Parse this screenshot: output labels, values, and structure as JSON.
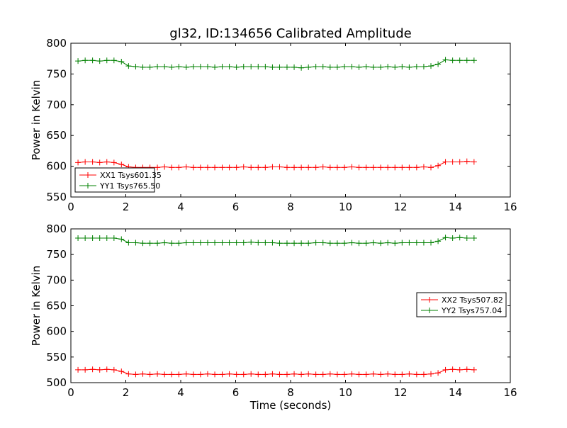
{
  "chart_data": [
    {
      "type": "line",
      "title": "gl32, ID:134656 Calibrated Amplitude",
      "xlabel": "",
      "ylabel": "Power in Kelvin",
      "xlim": [
        0,
        16
      ],
      "ylim": [
        550,
        800
      ],
      "xticks": [
        "0",
        "2",
        "4",
        "6",
        "8",
        "10",
        "12",
        "14",
        "16"
      ],
      "yticks": [
        "550",
        "600",
        "650",
        "700",
        "750",
        "800"
      ],
      "legend_position": "lower-left",
      "grid": false,
      "series": [
        {
          "name": "XX1 Tsys601.35",
          "color": "#ff0000",
          "x": [
            0.26,
            0.52,
            0.79,
            1.05,
            1.31,
            1.57,
            1.84,
            2.1,
            2.36,
            2.62,
            2.88,
            3.15,
            3.41,
            3.67,
            3.93,
            4.2,
            4.46,
            4.72,
            4.98,
            5.24,
            5.51,
            5.77,
            6.03,
            6.29,
            6.56,
            6.82,
            7.08,
            7.34,
            7.6,
            7.87,
            8.13,
            8.39,
            8.65,
            8.92,
            9.18,
            9.44,
            9.7,
            9.96,
            10.23,
            10.49,
            10.75,
            11.01,
            11.28,
            11.54,
            11.8,
            12.06,
            12.32,
            12.59,
            12.85,
            13.11,
            13.37,
            13.64,
            13.9,
            14.16,
            14.42,
            14.68
          ],
          "y": [
            606,
            607,
            607,
            606,
            607,
            606,
            603,
            599,
            598,
            598,
            598,
            598,
            599,
            598,
            598,
            599,
            598,
            598,
            598,
            598,
            598,
            598,
            598,
            599,
            598,
            598,
            598,
            599,
            599,
            598,
            598,
            598,
            598,
            598,
            599,
            598,
            598,
            598,
            599,
            598,
            598,
            598,
            598,
            598,
            598,
            598,
            598,
            598,
            599,
            598,
            601,
            607,
            607,
            607,
            608,
            607
          ]
        },
        {
          "name": "YY1 Tsys765.50",
          "color": "#008000",
          "x": [
            0.26,
            0.52,
            0.79,
            1.05,
            1.31,
            1.57,
            1.84,
            2.1,
            2.36,
            2.62,
            2.88,
            3.15,
            3.41,
            3.67,
            3.93,
            4.2,
            4.46,
            4.72,
            4.98,
            5.24,
            5.51,
            5.77,
            6.03,
            6.29,
            6.56,
            6.82,
            7.08,
            7.34,
            7.6,
            7.87,
            8.13,
            8.39,
            8.65,
            8.92,
            9.18,
            9.44,
            9.7,
            9.96,
            10.23,
            10.49,
            10.75,
            11.01,
            11.28,
            11.54,
            11.8,
            12.06,
            12.32,
            12.59,
            12.85,
            13.11,
            13.37,
            13.64,
            13.9,
            14.16,
            14.42,
            14.68
          ],
          "y": [
            771,
            772,
            772,
            771,
            772,
            772,
            770,
            763,
            762,
            761,
            761,
            762,
            762,
            761,
            762,
            761,
            762,
            762,
            762,
            761,
            762,
            762,
            761,
            762,
            762,
            762,
            762,
            761,
            761,
            761,
            761,
            760,
            761,
            762,
            762,
            761,
            761,
            762,
            762,
            761,
            762,
            761,
            761,
            762,
            761,
            762,
            761,
            762,
            762,
            763,
            766,
            773,
            772,
            772,
            772,
            772
          ]
        }
      ]
    },
    {
      "type": "line",
      "title": "",
      "xlabel": "Time (seconds)",
      "ylabel": "Power in Kelvin",
      "xlim": [
        0,
        16
      ],
      "ylim": [
        500,
        800
      ],
      "xticks": [
        "0",
        "2",
        "4",
        "6",
        "8",
        "10",
        "12",
        "14",
        "16"
      ],
      "yticks": [
        "500",
        "550",
        "600",
        "650",
        "700",
        "750",
        "800"
      ],
      "legend_position": "center-right",
      "grid": false,
      "series": [
        {
          "name": "XX2 Tsys507.82",
          "color": "#ff0000",
          "x": [
            0.26,
            0.52,
            0.79,
            1.05,
            1.31,
            1.57,
            1.84,
            2.1,
            2.36,
            2.62,
            2.88,
            3.15,
            3.41,
            3.67,
            3.93,
            4.2,
            4.46,
            4.72,
            4.98,
            5.24,
            5.51,
            5.77,
            6.03,
            6.29,
            6.56,
            6.82,
            7.08,
            7.34,
            7.6,
            7.87,
            8.13,
            8.39,
            8.65,
            8.92,
            9.18,
            9.44,
            9.7,
            9.96,
            10.23,
            10.49,
            10.75,
            11.01,
            11.28,
            11.54,
            11.8,
            12.06,
            12.32,
            12.59,
            12.85,
            13.11,
            13.37,
            13.64,
            13.9,
            14.16,
            14.42,
            14.68
          ],
          "y": [
            525,
            525,
            526,
            525,
            526,
            525,
            522,
            517,
            516,
            517,
            516,
            517,
            516,
            516,
            516,
            517,
            516,
            516,
            517,
            516,
            516,
            517,
            516,
            516,
            517,
            516,
            516,
            517,
            516,
            516,
            517,
            516,
            517,
            516,
            516,
            517,
            516,
            516,
            517,
            516,
            516,
            517,
            516,
            517,
            516,
            516,
            517,
            516,
            516,
            517,
            519,
            525,
            526,
            525,
            526,
            525
          ]
        },
        {
          "name": "YY2 Tsys757.04",
          "color": "#008000",
          "x": [
            0.26,
            0.52,
            0.79,
            1.05,
            1.31,
            1.57,
            1.84,
            2.1,
            2.36,
            2.62,
            2.88,
            3.15,
            3.41,
            3.67,
            3.93,
            4.2,
            4.46,
            4.72,
            4.98,
            5.24,
            5.51,
            5.77,
            6.03,
            6.29,
            6.56,
            6.82,
            7.08,
            7.34,
            7.6,
            7.87,
            8.13,
            8.39,
            8.65,
            8.92,
            9.18,
            9.44,
            9.7,
            9.96,
            10.23,
            10.49,
            10.75,
            11.01,
            11.28,
            11.54,
            11.8,
            12.06,
            12.32,
            12.59,
            12.85,
            13.11,
            13.37,
            13.64,
            13.9,
            14.16,
            14.42,
            14.68
          ],
          "y": [
            782,
            782,
            782,
            782,
            782,
            782,
            780,
            773,
            773,
            772,
            772,
            772,
            773,
            772,
            772,
            773,
            773,
            773,
            773,
            773,
            773,
            773,
            773,
            773,
            774,
            773,
            773,
            773,
            772,
            772,
            772,
            772,
            772,
            773,
            773,
            772,
            772,
            772,
            773,
            772,
            772,
            773,
            772,
            773,
            772,
            773,
            773,
            773,
            773,
            773,
            776,
            783,
            782,
            783,
            782,
            782
          ]
        }
      ]
    }
  ]
}
